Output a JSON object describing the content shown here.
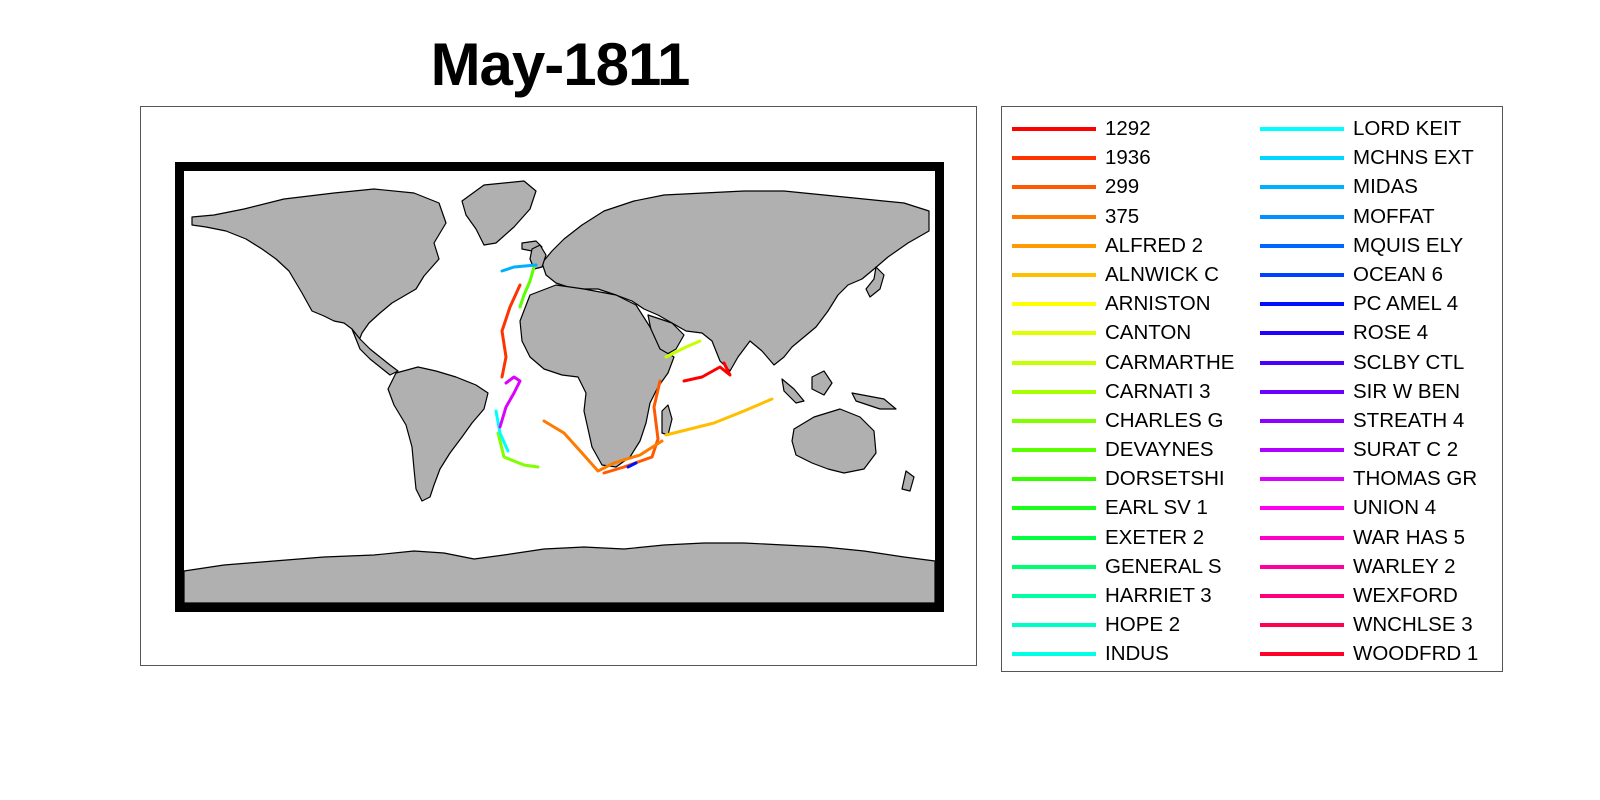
{
  "figure": {
    "title": "May-1811"
  },
  "map": {
    "land_color": "#b0b0b0",
    "coast_color": "#000000",
    "ocean_color": "#ffffff",
    "frame_color": "#000000"
  },
  "legend": {
    "col1": [
      {
        "name": "1292",
        "color": "#ff0000"
      },
      {
        "name": "1936",
        "color": "#ff3300"
      },
      {
        "name": "299",
        "color": "#ff5a00"
      },
      {
        "name": "375",
        "color": "#ff7a00"
      },
      {
        "name": "ALFRED 2",
        "color": "#ff9a00"
      },
      {
        "name": "ALNWICK C",
        "color": "#ffbf00"
      },
      {
        "name": "ARNISTON",
        "color": "#ffff00"
      },
      {
        "name": "CANTON",
        "color": "#e0ff00"
      },
      {
        "name": "CARMARTHE",
        "color": "#c6ff00"
      },
      {
        "name": "CARNATI 3",
        "color": "#a6ff00"
      },
      {
        "name": "CHARLES G",
        "color": "#80ff00"
      },
      {
        "name": "DEVAYNES",
        "color": "#5aff00"
      },
      {
        "name": "DORSETSHI",
        "color": "#33ff00"
      },
      {
        "name": "EARL SV 1",
        "color": "#1aff1a"
      },
      {
        "name": "EXETER 2",
        "color": "#00ff40"
      },
      {
        "name": "GENERAL S",
        "color": "#00ff70"
      },
      {
        "name": "HARRIET 3",
        "color": "#00ffa0"
      },
      {
        "name": "HOPE 2",
        "color": "#00ffc8"
      },
      {
        "name": "INDUS",
        "color": "#00ffe6"
      }
    ],
    "col2": [
      {
        "name": "LORD KEIT",
        "color": "#00ffff"
      },
      {
        "name": "MCHNS EXT",
        "color": "#00d8ff"
      },
      {
        "name": "MIDAS",
        "color": "#00b0ff"
      },
      {
        "name": "MOFFAT",
        "color": "#0090ff"
      },
      {
        "name": "MQUIS ELY",
        "color": "#0066ff"
      },
      {
        "name": "OCEAN 6",
        "color": "#0040ff"
      },
      {
        "name": "PC AMEL 4",
        "color": "#0010ff"
      },
      {
        "name": "ROSE 4",
        "color": "#2000ff"
      },
      {
        "name": "SCLBY CTL",
        "color": "#4a00ff"
      },
      {
        "name": "SIR W BEN",
        "color": "#6a00ff"
      },
      {
        "name": "STREATH 4",
        "color": "#8c00ff"
      },
      {
        "name": "SURAT C 2",
        "color": "#b000ff"
      },
      {
        "name": "THOMAS GR",
        "color": "#dc00ff"
      },
      {
        "name": "UNION 4",
        "color": "#ff00f0"
      },
      {
        "name": "WAR HAS 5",
        "color": "#ff00c8"
      },
      {
        "name": "WARLEY 2",
        "color": "#ff00a0"
      },
      {
        "name": "WEXFORD",
        "color": "#ff0078"
      },
      {
        "name": "WNCHLSE 3",
        "color": "#ff0050"
      },
      {
        "name": "WOODFRD 1",
        "color": "#ff0028"
      }
    ]
  }
}
